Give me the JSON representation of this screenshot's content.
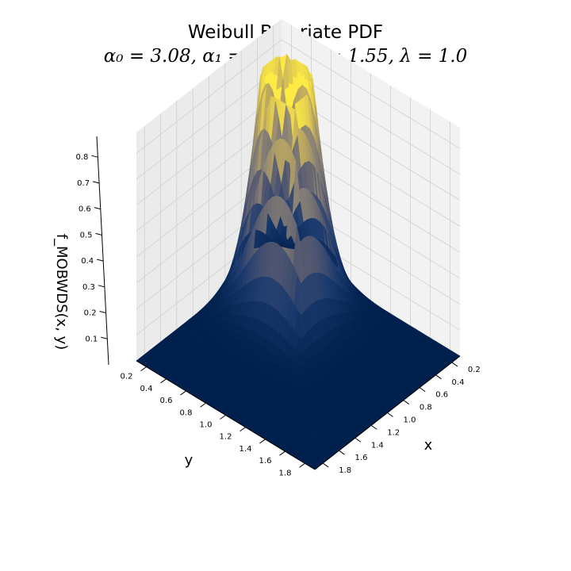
{
  "chart_data": {
    "type": "surface",
    "title": "Weibull Bivariate PDF",
    "subtitle": "α₀ = 3.08,  α₁ = 1.17,  α₂ = 1.55,  λ = 1.0",
    "xlabel": "x",
    "ylabel": "y",
    "zlabel": "f_MOBWDS(x, y)",
    "x_ticks": [
      "0.2",
      "0.4",
      "0.6",
      "0.8",
      "1.0",
      "1.2",
      "1.4",
      "1.6",
      "1.8"
    ],
    "y_ticks": [
      "0.2",
      "0.4",
      "0.6",
      "0.8",
      "1.0",
      "1.2",
      "1.4",
      "1.6",
      "1.8"
    ],
    "z_ticks": [
      "0.1",
      "0.2",
      "0.3",
      "0.4",
      "0.5",
      "0.6",
      "0.7",
      "0.8"
    ],
    "xlim": [
      0.1,
      1.9
    ],
    "ylim": [
      0.1,
      1.9
    ],
    "zlim": [
      0.0,
      0.88
    ],
    "params": {
      "alpha0": 3.08,
      "alpha1": 1.17,
      "alpha2": 1.55,
      "lambda": 1.0
    },
    "colormap": "cividis",
    "grid": true
  }
}
